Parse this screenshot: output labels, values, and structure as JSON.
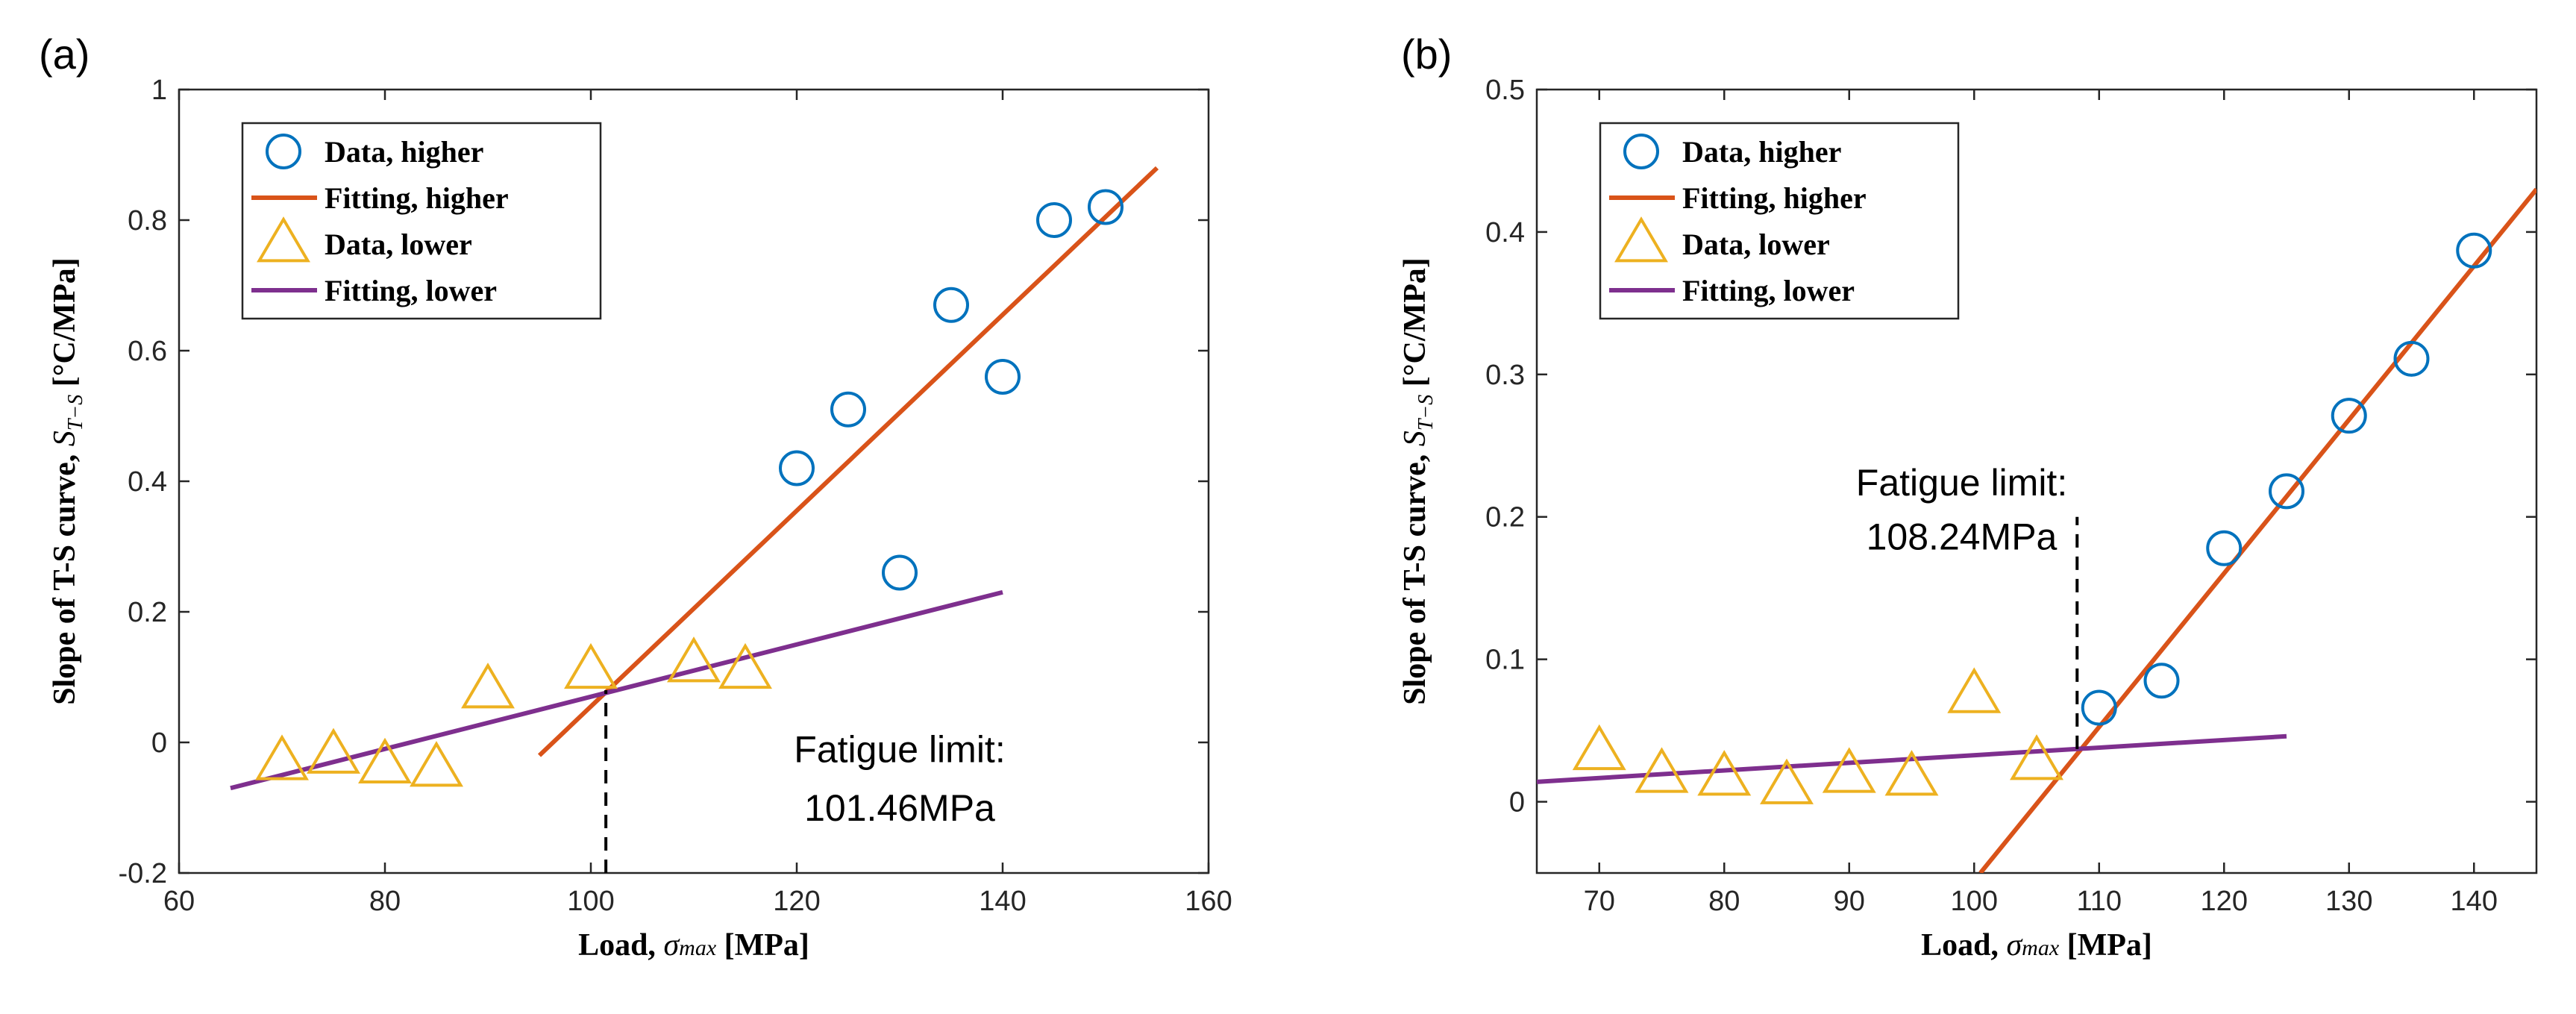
{
  "chart_data": [
    {
      "type": "scatter",
      "panel_label": "(a)",
      "xlabel": "Load, σmax [MPa]",
      "xlabel_parts": {
        "prefix": "Load, ",
        "symbol": "σ",
        "sub": "max",
        "suffix": " [MPa]"
      },
      "ylabel": "Slope of T-S curve, ST−S [°C/MPa]",
      "ylabel_parts": {
        "prefix": "Slope of T-S curve, ",
        "symbol": "S",
        "sub": "T−S",
        "suffix": " [°C/MPa]"
      },
      "xlim": [
        60,
        160
      ],
      "ylim": [
        -0.2,
        1
      ],
      "xticks": [
        60,
        80,
        100,
        120,
        140,
        160
      ],
      "yticks": [
        -0.2,
        0,
        0.2,
        0.4,
        0.6,
        0.8,
        1
      ],
      "xtick_labels": [
        "60",
        "80",
        "100",
        "120",
        "140",
        "160"
      ],
      "ytick_labels": [
        "-0.2",
        "0",
        "0.2",
        "0.4",
        "0.6",
        "0.8",
        "1"
      ],
      "grid": false,
      "legend_position": "top-left",
      "series": [
        {
          "name": "Data, higher",
          "kind": "marker-circle",
          "color": "#0072BD",
          "x": [
            120,
            125,
            130,
            135,
            140,
            145,
            150
          ],
          "y": [
            0.42,
            0.51,
            0.26,
            0.67,
            0.56,
            0.8,
            0.82
          ]
        },
        {
          "name": "Fitting, higher",
          "kind": "line",
          "color": "#D95319",
          "x": [
            95,
            155
          ],
          "y": [
            -0.02,
            0.88
          ]
        },
        {
          "name": "Data, lower",
          "kind": "marker-triangle",
          "color": "#EDB120",
          "x": [
            70,
            75,
            80,
            85,
            90,
            100,
            110,
            115
          ],
          "y": [
            -0.03,
            -0.02,
            -0.035,
            -0.04,
            0.08,
            0.11,
            0.12,
            0.11
          ]
        },
        {
          "name": "Fitting, lower",
          "kind": "line",
          "color": "#7E2F8E",
          "x": [
            65,
            140
          ],
          "y": [
            -0.07,
            0.23
          ]
        }
      ],
      "vline": {
        "x": 101.46,
        "y_from": -0.2,
        "y_to": 0.08
      },
      "annotation": {
        "line1": "Fatigue limit:",
        "line2": "101.46MPa",
        "x": 130,
        "y1": -0.03,
        "y2": -0.12
      }
    },
    {
      "type": "scatter",
      "panel_label": "(b)",
      "xlabel": "Load, σmax [MPa]",
      "xlabel_parts": {
        "prefix": "Load, ",
        "symbol": "σ",
        "sub": "max",
        "suffix": " [MPa]"
      },
      "ylabel": "Slope of T-S curve, ST−S [°C/MPa]",
      "ylabel_parts": {
        "prefix": "Slope of T-S curve, ",
        "symbol": "S",
        "sub": "T−S",
        "suffix": " [°C/MPa]"
      },
      "xlim": [
        65,
        145
      ],
      "ylim": [
        -0.05,
        0.5
      ],
      "xticks": [
        70,
        80,
        90,
        100,
        110,
        120,
        130,
        140
      ],
      "yticks": [
        0,
        0.1,
        0.2,
        0.3,
        0.4,
        0.5
      ],
      "xtick_labels": [
        "70",
        "80",
        "90",
        "100",
        "110",
        "120",
        "130",
        "140"
      ],
      "ytick_labels": [
        "0",
        "0.1",
        "0.2",
        "0.3",
        "0.4",
        "0.5"
      ],
      "grid": false,
      "legend_position": "top-left",
      "series": [
        {
          "name": "Data, higher",
          "kind": "marker-circle",
          "color": "#0072BD",
          "x": [
            110,
            115,
            120,
            125,
            130,
            135,
            140
          ],
          "y": [
            0.066,
            0.085,
            0.178,
            0.218,
            0.271,
            0.311,
            0.387
          ]
        },
        {
          "name": "Fitting, higher",
          "kind": "line",
          "color": "#D95319",
          "x": [
            100.5,
            145
          ],
          "y": [
            -0.05,
            0.43
          ]
        },
        {
          "name": "Data, lower",
          "kind": "marker-triangle",
          "color": "#EDB120",
          "x": [
            70,
            75,
            80,
            85,
            90,
            95,
            100,
            105
          ],
          "y": [
            0.035,
            0.019,
            0.017,
            0.011,
            0.019,
            0.017,
            0.075,
            0.028
          ]
        },
        {
          "name": "Fitting, lower",
          "kind": "line",
          "color": "#7E2F8E",
          "x": [
            65,
            125
          ],
          "y": [
            0.014,
            0.046
          ]
        }
      ],
      "vline": {
        "x": 108.24,
        "y_from": 0.037,
        "y_to": 0.2
      },
      "annotation": {
        "line1": "Fatigue limit:",
        "line2": "108.24MPa",
        "x": 99,
        "y1": 0.215,
        "y2": 0.177
      }
    }
  ]
}
